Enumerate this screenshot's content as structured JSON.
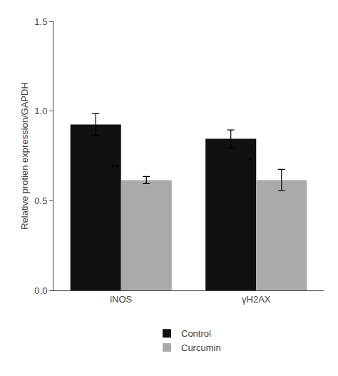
{
  "chart_data": {
    "type": "bar",
    "categories": [
      "iNOS",
      "γH2AX"
    ],
    "series": [
      {
        "name": "Control",
        "color": "#111111",
        "values": [
          0.925,
          0.845
        ],
        "errors": [
          0.06,
          0.05
        ]
      },
      {
        "name": "Curcumin",
        "color": "#aaaaaa",
        "values": [
          0.615,
          0.615
        ],
        "errors": [
          0.02,
          0.06
        ]
      }
    ],
    "ylabel": "Relative protien expression/GAPDH",
    "ylim": [
      0.0,
      1.5
    ],
    "yticks": [
      {
        "value": 0.0,
        "label": "0.0"
      },
      0.5,
      {
        "value": 1.0,
        "label": "1.0"
      },
      1.5
    ],
    "annotations": [
      {
        "text": "**",
        "category": "iNOS",
        "series": "Curcumin"
      },
      {
        "text": "*",
        "category": "γH2AX",
        "series": "Curcumin"
      }
    ],
    "grid": false,
    "legend": "below"
  }
}
